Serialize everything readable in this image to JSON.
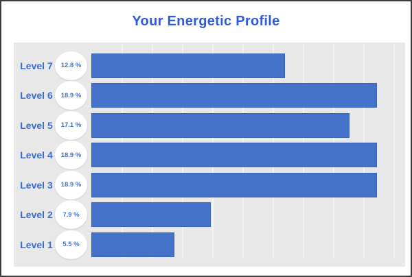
{
  "title": "Your Energetic Profile",
  "colors": {
    "title_text": "#2c5be2",
    "level_label_text": "#3a6ace",
    "percent_text": "#4273c9",
    "bar_fill": "#4472c8",
    "bar_border": "#3a64b4",
    "plot_background": "#e8e8e8",
    "gridline": "#f4f4f4",
    "frame_border": "#3d3d3d",
    "circle_fill": "#ffffff"
  },
  "chart_data": {
    "type": "bar",
    "orientation": "horizontal",
    "title": "Your Energetic Profile",
    "categories": [
      "Level 7",
      "Level 6",
      "Level 5",
      "Level 4",
      "Level 3",
      "Level 2",
      "Level 1"
    ],
    "values": [
      12.8,
      18.9,
      17.1,
      18.9,
      18.9,
      7.9,
      5.5
    ],
    "value_labels": [
      "12.8 %",
      "18.9 %",
      "17.1 %",
      "18.9 %",
      "18.9 %",
      "7.9 %",
      "5.5 %"
    ],
    "xlabel": "",
    "ylabel": "",
    "xlim": [
      0,
      20
    ],
    "gridline_step": 2,
    "grid": true,
    "legend": false,
    "value_label_style": "circle-badge-left-of-bar"
  }
}
